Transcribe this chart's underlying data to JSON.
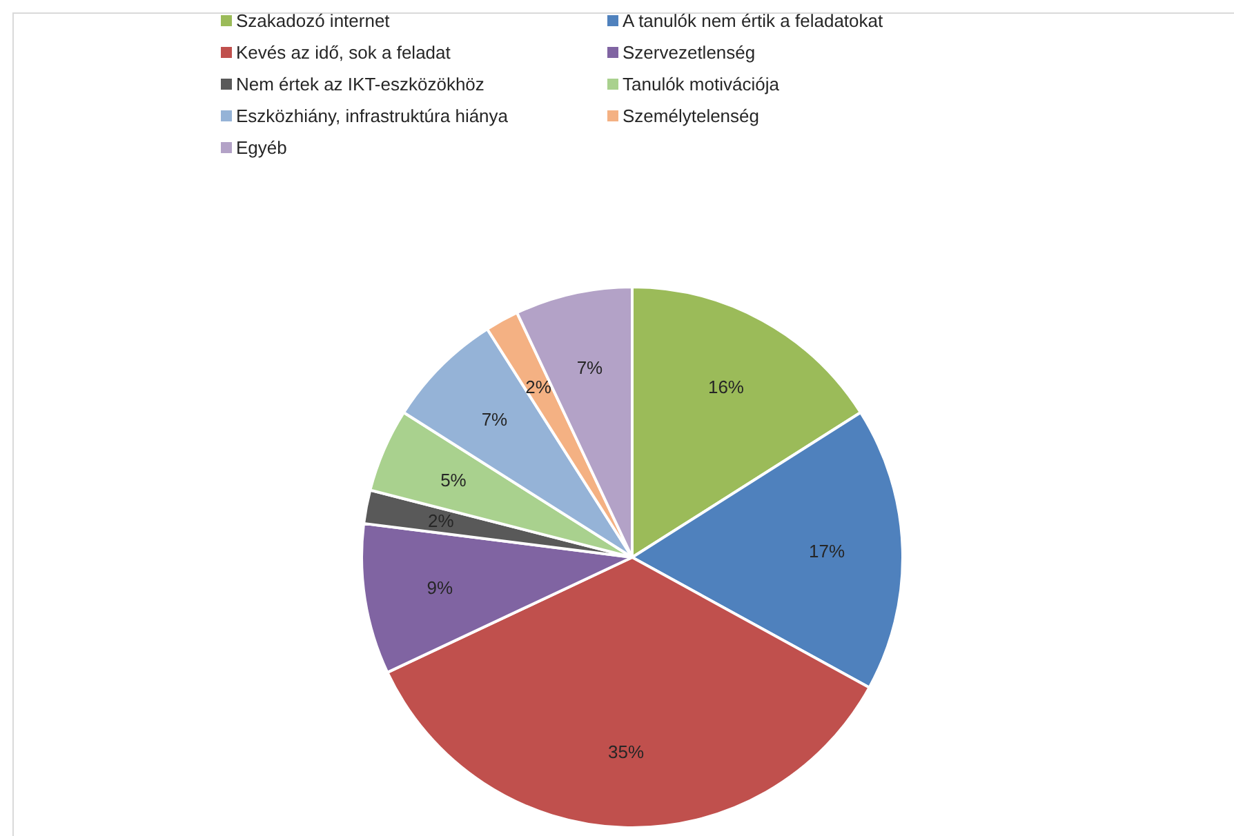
{
  "chart_data": {
    "type": "pie",
    "categories": [
      "Szakadozó internet",
      "A tanulók nem értik a feladatokat",
      "Kevés az idő, sok a feladat",
      "Szervezetlenség",
      "Nem értek az IKT-eszközökhöz",
      "Tanulók motivációja",
      "Eszközhiány, infrastruktúra hiánya",
      "Személytelenség",
      "Egyéb"
    ],
    "values": [
      16,
      17,
      35,
      9,
      2,
      5,
      7,
      2,
      7
    ],
    "colors": [
      "#9bbb59",
      "#4f81bd",
      "#c0504d",
      "#8064a2",
      "#595959",
      "#a9d18e",
      "#95b3d7",
      "#f4b183",
      "#b3a2c7"
    ],
    "value_labels": [
      "16%",
      "17%",
      "35%",
      "9%",
      "2%",
      "5%",
      "7%",
      "2%",
      "7%"
    ],
    "legend": "top"
  }
}
